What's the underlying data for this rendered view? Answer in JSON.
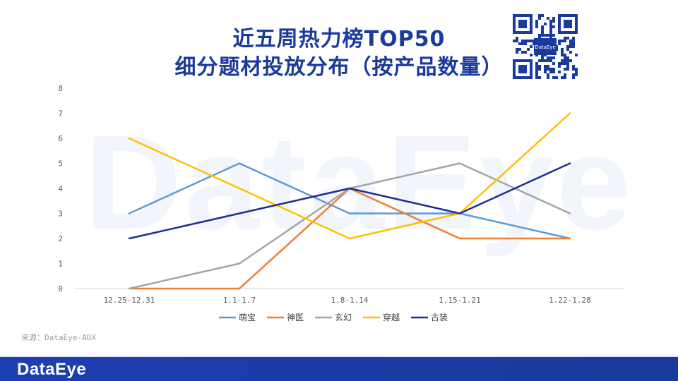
{
  "header": {
    "title_line1": "近五周热力榜TOP50",
    "title_line2": "细分题材投放分布（按产品数量）"
  },
  "watermark": "DataEye",
  "qr": {
    "label": "DataEye"
  },
  "source": "来源：DataEye-ADX",
  "footer": {
    "logo": "DataEye"
  },
  "colors": {
    "萌宝": "#5b9bd5",
    "神医": "#ed7d31",
    "玄幻": "#a5a5a5",
    "穿越": "#ffc000",
    "古装": "#1f2f8f",
    "title": "#1a3a9c"
  },
  "chart_data": {
    "type": "line",
    "categories": [
      "12.25-12.31",
      "1.1-1.7",
      "1.8-1.14",
      "1.15-1.21",
      "1.22-1.28"
    ],
    "ylim": [
      0,
      8
    ],
    "yticks": [
      0,
      1,
      2,
      3,
      4,
      5,
      6,
      7,
      8
    ],
    "grid": false,
    "legend": "bottom",
    "series": [
      {
        "name": "萌宝",
        "values": [
          3,
          5,
          3,
          3,
          2
        ],
        "color": "#5b9bd5"
      },
      {
        "name": "神医",
        "values": [
          0,
          0,
          4,
          2,
          2
        ],
        "color": "#ed7d31"
      },
      {
        "name": "玄幻",
        "values": [
          0,
          1,
          4,
          5,
          3
        ],
        "color": "#a5a5a5"
      },
      {
        "name": "穿越",
        "values": [
          6,
          4,
          2,
          3,
          7
        ],
        "color": "#ffc000"
      },
      {
        "name": "古装",
        "values": [
          2,
          3,
          4,
          3,
          5
        ],
        "color": "#1f2f8f"
      }
    ]
  }
}
